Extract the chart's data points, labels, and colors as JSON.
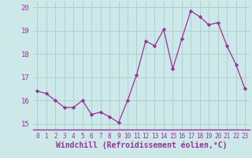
{
  "hours": [
    0,
    1,
    2,
    3,
    4,
    5,
    6,
    7,
    8,
    9,
    10,
    11,
    12,
    13,
    14,
    15,
    16,
    17,
    18,
    19,
    20,
    21,
    22,
    23
  ],
  "values": [
    16.4,
    16.3,
    16.0,
    15.7,
    15.7,
    16.0,
    15.4,
    15.5,
    15.3,
    15.05,
    16.0,
    17.1,
    18.55,
    18.35,
    19.05,
    17.35,
    18.65,
    19.85,
    19.6,
    19.25,
    19.35,
    18.35,
    17.55,
    16.5
  ],
  "line_color": "#993399",
  "marker": "D",
  "marker_size": 2.2,
  "bg_color": "#cce8e8",
  "grid_color": "#aacccc",
  "xlabel": "Windchill (Refroidissement éolien,°C)",
  "ylim": [
    14.75,
    20.25
  ],
  "yticks": [
    15,
    16,
    17,
    18,
    19,
    20
  ],
  "xticks": [
    0,
    1,
    2,
    3,
    4,
    5,
    6,
    7,
    8,
    9,
    10,
    11,
    12,
    13,
    14,
    15,
    16,
    17,
    18,
    19,
    20,
    21,
    22,
    23
  ],
  "xlabel_color": "#993399",
  "tick_color": "#993399",
  "xlabel_fontsize": 7.0,
  "xtick_fontsize": 5.5,
  "ytick_fontsize": 6.5
}
